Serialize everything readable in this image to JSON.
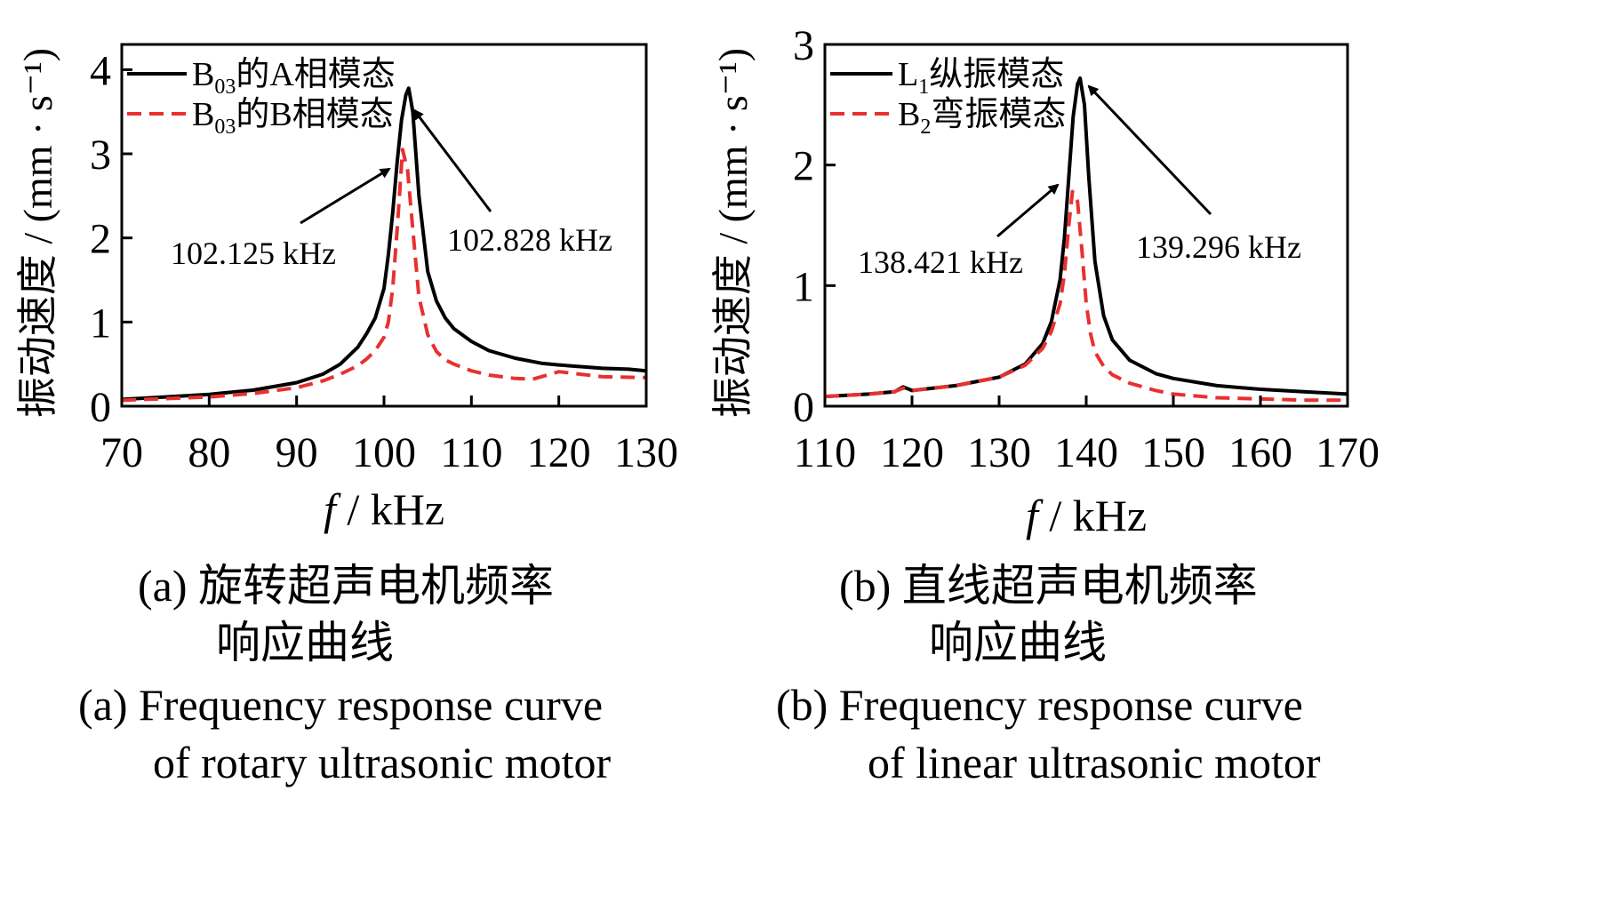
{
  "figure": {
    "captions": [
      {
        "cn_line1": "(a)  旋转超声电机频率",
        "cn_line2": "响应曲线",
        "en_line1": "(a)  Frequency response curve",
        "en_line2": "of rotary ultrasonic motor"
      },
      {
        "cn_line1": "(b)  直线超声电机频率",
        "cn_line2": "响应曲线",
        "en_line1": "(b)  Frequency response curve",
        "en_line2": "of linear ultrasonic motor"
      }
    ]
  },
  "chart_data": [
    {
      "type": "line",
      "xlabel": "f / kHz",
      "ylabel": "振动速度 / (mm · s⁻¹)",
      "xlim": [
        70,
        130
      ],
      "ylim": [
        0,
        4.3
      ],
      "xticks": [
        70,
        80,
        90,
        100,
        110,
        120,
        130
      ],
      "yticks": [
        0,
        1,
        2,
        3,
        4
      ],
      "grid": false,
      "legend_position": "top-left",
      "series": [
        {
          "name": "B03的A相模态",
          "legend_main": "B",
          "legend_sub": "03",
          "legend_tail": "的A相模态",
          "color": "#000000",
          "style": "solid",
          "x": [
            70,
            75,
            80,
            85,
            90,
            93,
            95,
            97,
            98,
            99,
            100,
            100.5,
            101,
            101.5,
            102,
            102.5,
            102.828,
            103.3,
            104,
            105,
            106,
            107,
            108,
            110,
            112,
            115,
            118,
            120,
            125,
            128,
            130
          ],
          "y": [
            0.08,
            0.11,
            0.14,
            0.19,
            0.28,
            0.38,
            0.5,
            0.7,
            0.86,
            1.05,
            1.4,
            1.8,
            2.3,
            2.9,
            3.4,
            3.7,
            3.78,
            3.5,
            2.5,
            1.6,
            1.25,
            1.05,
            0.92,
            0.77,
            0.66,
            0.57,
            0.51,
            0.49,
            0.45,
            0.44,
            0.42
          ]
        },
        {
          "name": "B03的B相模态",
          "legend_main": "B",
          "legend_sub": "03",
          "legend_tail": "的B相模态",
          "color": "#e8312f",
          "style": "dashed",
          "x": [
            70,
            75,
            80,
            85,
            90,
            93,
            95,
            97,
            98,
            99,
            100,
            100.5,
            101,
            101.5,
            102.125,
            102.7,
            103.3,
            104,
            105,
            106,
            107,
            108,
            110,
            112,
            115,
            117,
            120,
            125,
            130
          ],
          "y": [
            0.07,
            0.09,
            0.11,
            0.15,
            0.22,
            0.3,
            0.38,
            0.48,
            0.56,
            0.66,
            0.82,
            1.0,
            1.4,
            2.1,
            3.05,
            2.8,
            2.1,
            1.3,
            0.85,
            0.65,
            0.55,
            0.5,
            0.42,
            0.37,
            0.33,
            0.32,
            0.41,
            0.35,
            0.34
          ]
        }
      ],
      "annotations": [
        {
          "text": "102.125 kHz",
          "x": 102.125,
          "y": 3.05
        },
        {
          "text": "102.828 kHz",
          "x": 102.828,
          "y": 3.78
        }
      ]
    },
    {
      "type": "line",
      "xlabel": "f / kHz",
      "ylabel": "振动速度 / (mm · s⁻¹)",
      "xlim": [
        110,
        170
      ],
      "ylim": [
        0,
        3
      ],
      "xticks": [
        110,
        120,
        130,
        140,
        150,
        160,
        170
      ],
      "yticks": [
        0,
        1,
        2,
        3
      ],
      "grid": false,
      "legend_position": "top-left",
      "series": [
        {
          "name": "L1纵振模态",
          "legend_main": "L",
          "legend_sub": "1",
          "legend_tail": "纵振模态",
          "color": "#000000",
          "style": "solid",
          "x": [
            110,
            115,
            118,
            119,
            120,
            125,
            130,
            133,
            135,
            136,
            137,
            137.5,
            138,
            138.5,
            139,
            139.296,
            139.8,
            140.3,
            141,
            142,
            143,
            145,
            148,
            150,
            155,
            160,
            165,
            170
          ],
          "y": [
            0.08,
            0.1,
            0.12,
            0.16,
            0.13,
            0.17,
            0.24,
            0.35,
            0.52,
            0.7,
            1.05,
            1.4,
            1.9,
            2.4,
            2.67,
            2.72,
            2.5,
            1.9,
            1.2,
            0.75,
            0.55,
            0.38,
            0.27,
            0.23,
            0.17,
            0.14,
            0.12,
            0.1
          ]
        },
        {
          "name": "B2弯振模态",
          "legend_main": "B",
          "legend_sub": "2",
          "legend_tail": "弯振模态",
          "color": "#e8312f",
          "style": "dashed",
          "x": [
            110,
            115,
            118,
            119,
            120,
            125,
            130,
            133,
            135,
            136,
            137,
            137.5,
            138,
            138.421,
            139,
            139.5,
            140,
            140.5,
            141,
            142,
            143,
            145,
            148,
            150,
            155,
            160,
            165,
            170
          ],
          "y": [
            0.08,
            0.1,
            0.12,
            0.15,
            0.13,
            0.17,
            0.24,
            0.34,
            0.48,
            0.62,
            0.85,
            1.1,
            1.5,
            1.78,
            1.7,
            1.3,
            0.85,
            0.6,
            0.45,
            0.33,
            0.26,
            0.19,
            0.13,
            0.1,
            0.07,
            0.06,
            0.05,
            0.05
          ]
        }
      ],
      "annotations": [
        {
          "text": "138.421 kHz",
          "x": 138.421,
          "y": 1.78
        },
        {
          "text": "139.296 kHz",
          "x": 139.296,
          "y": 2.72
        }
      ]
    }
  ]
}
